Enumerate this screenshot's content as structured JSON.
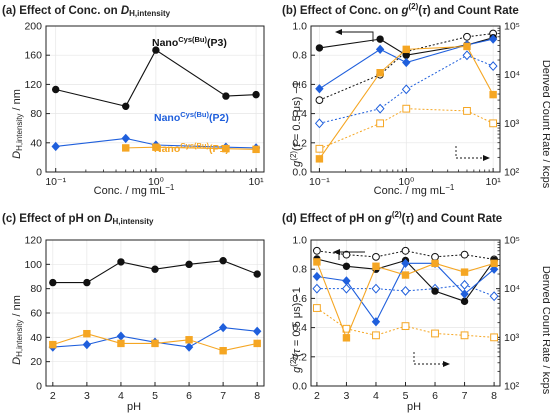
{
  "colors": {
    "P1": "#f5a623",
    "P2": "#1f5fdc",
    "P3": "#111111",
    "axis": "#222222",
    "grid": "#e6e6e6"
  },
  "chart_data": [
    {
      "type": "line",
      "title": "(a) Effect of Conc. on D_H,intensity",
      "xlabel": "Conc. / mg mL⁻¹",
      "ylabel": "D_H,intensity / nm",
      "xscale": "log",
      "xlim": [
        0.08,
        12
      ],
      "ylim": [
        0,
        200
      ],
      "yticks": [
        0,
        40,
        80,
        120,
        160,
        200
      ],
      "xticks": [
        {
          "v": 0.1,
          "label": "10⁻¹"
        },
        {
          "v": 1,
          "label": "10⁰"
        },
        {
          "v": 10,
          "label": "10¹"
        }
      ],
      "series": [
        {
          "name": "Nano Cys(Bu) (P3)",
          "key": "P3",
          "marker": "circle",
          "x": [
            0.1,
            0.5,
            1,
            5,
            10
          ],
          "values": [
            113,
            90,
            167,
            104,
            106
          ]
        },
        {
          "name": "Nano Cys(Bu) (P2)",
          "key": "P2",
          "marker": "diamond",
          "x": [
            0.1,
            0.5,
            1,
            5,
            10
          ],
          "values": [
            35,
            46,
            37,
            34,
            33
          ]
        },
        {
          "name": "Nano Cys(Bu) (P1)",
          "key": "P1",
          "marker": "square",
          "x": [
            0.5,
            1,
            5,
            10
          ],
          "values": [
            33,
            34,
            32,
            31
          ]
        }
      ],
      "labels": [
        {
          "key": "P3",
          "base": "Nano",
          "sup": "Cys(Bu)",
          "tail": "(P3)",
          "color": "#111111"
        },
        {
          "key": "P2",
          "base": "Nano",
          "sup": "Cys(Bu)",
          "tail": "(P2)",
          "color": "#1f5fdc"
        },
        {
          "key": "P1",
          "base": "Nano",
          "sup": "Cys(Bu)",
          "tail": "(P1)",
          "color": "#f5a623"
        }
      ]
    },
    {
      "type": "line",
      "title": "(b) Effect of Conc. on g(2)(τ) and Count Rate",
      "xlabel": "Conc. / mg mL⁻¹",
      "ylabel": "g(2)(τ = 0.5 μs) − 1",
      "y2label": "Derived Count Rate / kcps",
      "xscale": "log",
      "xlim": [
        0.08,
        12
      ],
      "ylim": [
        0,
        1.0
      ],
      "yticks": [
        0,
        0.2,
        0.4,
        0.6,
        0.8,
        1.0
      ],
      "y2scale": "log",
      "y2lim": [
        100,
        100000
      ],
      "y2ticks": [
        {
          "v": 100,
          "label": "10²"
        },
        {
          "v": 1000,
          "label": "10³"
        },
        {
          "v": 10000,
          "label": "10⁴"
        },
        {
          "v": 100000,
          "label": "10⁵"
        }
      ],
      "xticks": [
        {
          "v": 0.1,
          "label": "10⁻¹"
        },
        {
          "v": 1,
          "label": "10⁰"
        },
        {
          "v": 10,
          "label": "10¹"
        }
      ],
      "series": [
        {
          "name": "P3 g2",
          "key": "P3",
          "axis": "left",
          "style": "solid",
          "marker": "circle",
          "x": [
            0.1,
            0.5,
            1,
            5,
            10
          ],
          "values": [
            0.85,
            0.91,
            0.8,
            0.87,
            0.92
          ]
        },
        {
          "name": "P2 g2",
          "key": "P2",
          "axis": "left",
          "style": "solid",
          "marker": "diamond",
          "x": [
            0.1,
            0.5,
            1,
            5,
            10
          ],
          "values": [
            0.57,
            0.84,
            0.75,
            0.87,
            0.91
          ]
        },
        {
          "name": "P1 g2",
          "key": "P1",
          "axis": "left",
          "style": "solid",
          "marker": "square",
          "x": [
            0.1,
            0.5,
            1,
            5,
            10
          ],
          "values": [
            0.09,
            0.68,
            0.84,
            0.86,
            0.53
          ]
        },
        {
          "name": "P3 count rate",
          "key": "P3",
          "axis": "right",
          "style": "dotted",
          "marker": "circle-open",
          "x": [
            0.1,
            0.5,
            1,
            5,
            10
          ],
          "values": [
            3000,
            10000,
            30000,
            60000,
            70000
          ]
        },
        {
          "name": "P2 count rate",
          "key": "P2",
          "axis": "right",
          "style": "dotted",
          "marker": "diamond-open",
          "x": [
            0.1,
            0.5,
            1,
            5,
            10
          ],
          "values": [
            1000,
            2000,
            5000,
            25000,
            15000
          ]
        },
        {
          "name": "P1 count rate",
          "key": "P1",
          "axis": "right",
          "style": "dotted",
          "marker": "square-open",
          "x": [
            0.1,
            0.5,
            1,
            5,
            10
          ],
          "values": [
            300,
            1000,
            2000,
            1800,
            1000
          ]
        }
      ]
    },
    {
      "type": "line",
      "title": "(c) Effect of pH on D_H,intensity",
      "xlabel": "pH",
      "ylabel": "D_H,intensity / nm",
      "xscale": "linear",
      "xlim": [
        1.8,
        8.2
      ],
      "ylim": [
        0,
        120
      ],
      "yticks": [
        0,
        20,
        40,
        60,
        80,
        100,
        120
      ],
      "xticks": [
        {
          "v": 2,
          "label": "2"
        },
        {
          "v": 3,
          "label": "3"
        },
        {
          "v": 4,
          "label": "4"
        },
        {
          "v": 5,
          "label": "5"
        },
        {
          "v": 6,
          "label": "6"
        },
        {
          "v": 7,
          "label": "7"
        },
        {
          "v": 8,
          "label": "8"
        }
      ],
      "series": [
        {
          "name": "P3",
          "key": "P3",
          "marker": "circle",
          "x": [
            2,
            3,
            4,
            5,
            6,
            7,
            8
          ],
          "values": [
            85,
            85,
            102,
            96,
            100,
            103,
            92
          ]
        },
        {
          "name": "P2",
          "key": "P2",
          "marker": "diamond",
          "x": [
            2,
            3,
            4,
            5,
            6,
            7,
            8
          ],
          "values": [
            32,
            34,
            41,
            36,
            32,
            48,
            45
          ]
        },
        {
          "name": "P1",
          "key": "P1",
          "marker": "square",
          "x": [
            2,
            3,
            4,
            5,
            6,
            7,
            8
          ],
          "values": [
            34,
            43,
            35,
            35,
            38,
            29,
            35
          ]
        }
      ]
    },
    {
      "type": "line",
      "title": "(d) Effect of pH on g(2)(τ) and Count Rate",
      "xlabel": "pH",
      "ylabel": "g(2)(τ = 0.5 μs) − 1",
      "y2label": "Derived Count Rate / kcps",
      "xscale": "linear",
      "xlim": [
        1.8,
        8.2
      ],
      "ylim": [
        0,
        1.0
      ],
      "yticks": [
        0,
        0.2,
        0.4,
        0.6,
        0.8,
        1.0
      ],
      "y2scale": "log",
      "y2lim": [
        100,
        100000
      ],
      "y2ticks": [
        {
          "v": 100,
          "label": "10²"
        },
        {
          "v": 1000,
          "label": "10³"
        },
        {
          "v": 10000,
          "label": "10⁴"
        },
        {
          "v": 100000,
          "label": "10⁵"
        }
      ],
      "xticks": [
        {
          "v": 2,
          "label": "2"
        },
        {
          "v": 3,
          "label": "3"
        },
        {
          "v": 4,
          "label": "4"
        },
        {
          "v": 5,
          "label": "5"
        },
        {
          "v": 6,
          "label": "6"
        },
        {
          "v": 7,
          "label": "7"
        },
        {
          "v": 8,
          "label": "8"
        }
      ],
      "series": [
        {
          "name": "P3 g2",
          "key": "P3",
          "axis": "left",
          "style": "solid",
          "marker": "circle",
          "x": [
            2,
            3,
            4,
            5,
            6,
            7,
            8
          ],
          "values": [
            0.87,
            0.82,
            0.8,
            0.86,
            0.65,
            0.58,
            0.86
          ]
        },
        {
          "name": "P2 g2",
          "key": "P2",
          "axis": "left",
          "style": "solid",
          "marker": "diamond",
          "x": [
            2,
            3,
            4,
            5,
            6,
            7,
            8
          ],
          "values": [
            0.75,
            0.72,
            0.44,
            0.84,
            0.84,
            0.63,
            0.8
          ]
        },
        {
          "name": "P1 g2",
          "key": "P1",
          "axis": "left",
          "style": "solid",
          "marker": "square",
          "x": [
            2,
            3,
            4,
            5,
            6,
            7,
            8
          ],
          "values": [
            0.85,
            0.33,
            0.82,
            0.76,
            0.84,
            0.78,
            0.84
          ]
        },
        {
          "name": "P3 count rate",
          "key": "P3",
          "axis": "right",
          "style": "dotted",
          "marker": "circle-open",
          "x": [
            2,
            3,
            4,
            5,
            6,
            7,
            8
          ],
          "values": [
            60000,
            50000,
            45000,
            60000,
            45000,
            50000,
            40000
          ]
        },
        {
          "name": "P2 count rate",
          "key": "P2",
          "axis": "right",
          "style": "dotted",
          "marker": "diamond-open",
          "x": [
            2,
            3,
            4,
            5,
            6,
            7,
            8
          ],
          "values": [
            10000,
            10000,
            10000,
            9000,
            10000,
            12000,
            7000
          ]
        },
        {
          "name": "P1 count rate",
          "key": "P1",
          "axis": "right",
          "style": "dotted",
          "marker": "square-open",
          "x": [
            2,
            3,
            4,
            5,
            6,
            7,
            8
          ],
          "values": [
            4000,
            1500,
            1100,
            1700,
            1200,
            1100,
            1000
          ]
        }
      ]
    }
  ]
}
